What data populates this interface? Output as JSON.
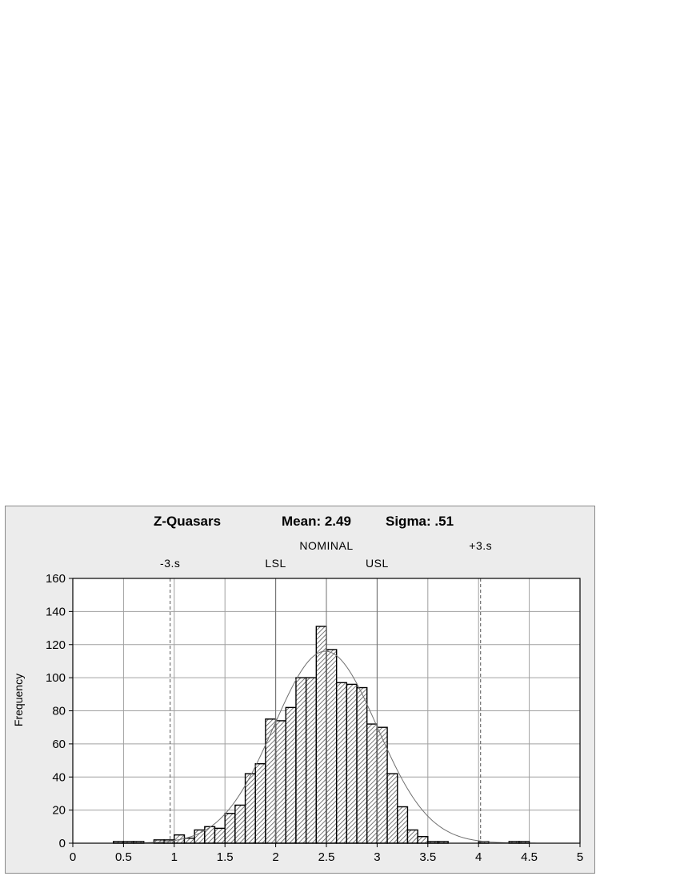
{
  "chart_data": {
    "type": "bar",
    "title": "Z-Quasars",
    "stats": {
      "mean_label": "Mean: 2.49",
      "sigma_label": "Sigma: .51",
      "mean": 2.49,
      "sigma": 0.51
    },
    "ylabel": "Frequency",
    "xlabel": "",
    "xlim": [
      0,
      5
    ],
    "ylim": [
      0,
      160
    ],
    "x_ticks": [
      "0",
      "0.5",
      "1",
      "1.5",
      "2",
      "2.5",
      "3",
      "3.5",
      "4",
      "4.5",
      "5"
    ],
    "y_ticks": [
      "0",
      "20",
      "40",
      "60",
      "80",
      "100",
      "120",
      "140",
      "160"
    ],
    "grid": true,
    "bin_width": 0.1,
    "bins": [
      {
        "x0": 0.4,
        "x1": 0.5,
        "value": 1
      },
      {
        "x0": 0.5,
        "x1": 0.6,
        "value": 1
      },
      {
        "x0": 0.6,
        "x1": 0.7,
        "value": 1
      },
      {
        "x0": 0.8,
        "x1": 0.9,
        "value": 2
      },
      {
        "x0": 0.9,
        "x1": 1.0,
        "value": 2
      },
      {
        "x0": 1.0,
        "x1": 1.1,
        "value": 5
      },
      {
        "x0": 1.1,
        "x1": 1.2,
        "value": 3
      },
      {
        "x0": 1.2,
        "x1": 1.3,
        "value": 8
      },
      {
        "x0": 1.3,
        "x1": 1.4,
        "value": 10
      },
      {
        "x0": 1.4,
        "x1": 1.5,
        "value": 9
      },
      {
        "x0": 1.5,
        "x1": 1.6,
        "value": 18
      },
      {
        "x0": 1.6,
        "x1": 1.7,
        "value": 23
      },
      {
        "x0": 1.7,
        "x1": 1.8,
        "value": 42
      },
      {
        "x0": 1.8,
        "x1": 1.9,
        "value": 48
      },
      {
        "x0": 1.9,
        "x1": 2.0,
        "value": 75
      },
      {
        "x0": 2.0,
        "x1": 2.1,
        "value": 74
      },
      {
        "x0": 2.1,
        "x1": 2.2,
        "value": 82
      },
      {
        "x0": 2.2,
        "x1": 2.3,
        "value": 100
      },
      {
        "x0": 2.3,
        "x1": 2.4,
        "value": 100
      },
      {
        "x0": 2.4,
        "x1": 2.5,
        "value": 131
      },
      {
        "x0": 2.5,
        "x1": 2.6,
        "value": 117
      },
      {
        "x0": 2.6,
        "x1": 2.7,
        "value": 97
      },
      {
        "x0": 2.7,
        "x1": 2.8,
        "value": 96
      },
      {
        "x0": 2.8,
        "x1": 2.9,
        "value": 94
      },
      {
        "x0": 2.9,
        "x1": 3.0,
        "value": 72
      },
      {
        "x0": 3.0,
        "x1": 3.1,
        "value": 70
      },
      {
        "x0": 3.1,
        "x1": 3.2,
        "value": 42
      },
      {
        "x0": 3.2,
        "x1": 3.3,
        "value": 22
      },
      {
        "x0": 3.3,
        "x1": 3.4,
        "value": 8
      },
      {
        "x0": 3.4,
        "x1": 3.5,
        "value": 4
      },
      {
        "x0": 3.5,
        "x1": 3.6,
        "value": 1
      },
      {
        "x0": 3.6,
        "x1": 3.7,
        "value": 1
      },
      {
        "x0": 4.0,
        "x1": 4.1,
        "value": 1
      },
      {
        "x0": 4.3,
        "x1": 4.4,
        "value": 1
      },
      {
        "x0": 4.4,
        "x1": 4.5,
        "value": 1
      }
    ],
    "normal_curve": {
      "mean": 2.49,
      "sigma": 0.51,
      "peak": 116
    },
    "reference_lines": [
      {
        "label": "-3.s",
        "x": 0.96,
        "style": "dashed"
      },
      {
        "label": "LSL",
        "x": 2.0,
        "style": "solid"
      },
      {
        "label": "NOMINAL",
        "x": 2.5,
        "style": "solid"
      },
      {
        "label": "USL",
        "x": 3.0,
        "style": "solid"
      },
      {
        "label": "+3.s",
        "x": 4.02,
        "style": "dashed"
      }
    ],
    "colors": {
      "bar_fill_pattern": "#555555",
      "bar_stroke": "#000000",
      "grid": "#a0a0a0",
      "panel_bg": "#ececec",
      "plot_bg": "#ffffff",
      "curve": "#707070"
    }
  }
}
